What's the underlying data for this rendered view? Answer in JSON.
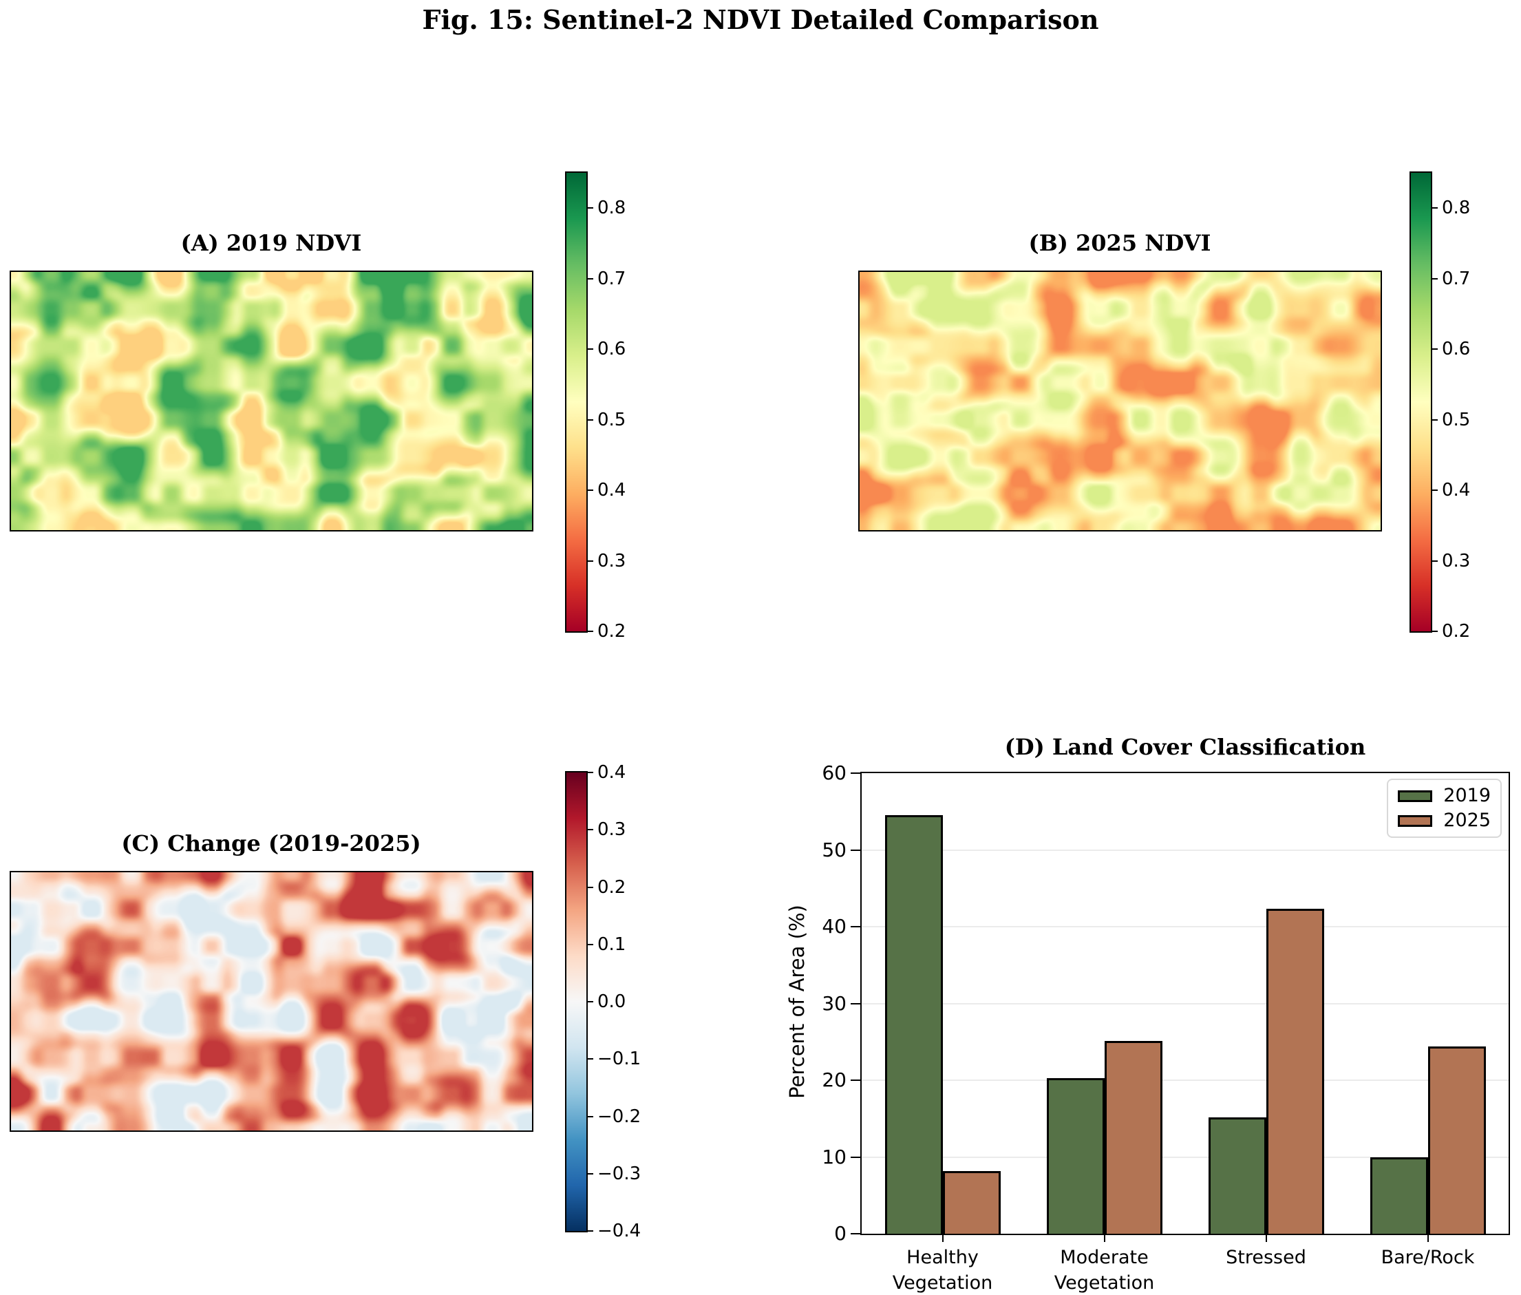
{
  "figure": {
    "title": "Fig. 15: Sentinel-2 NDVI Detailed Comparison"
  },
  "colors": {
    "background": "#ffffff",
    "text": "#000000",
    "map_border": "#000000",
    "bar_edge": "#000000",
    "gridline": "#ebebeb",
    "legend_border": "#d8d8d8",
    "bar_2019": "#567247",
    "bar_2025": "#B27454"
  },
  "colormaps": {
    "RdYlGn": [
      "#a50026",
      "#d73027",
      "#f46d43",
      "#fdae61",
      "#fee08b",
      "#ffffbf",
      "#d9ef8b",
      "#a6d96a",
      "#66bd63",
      "#1a9850",
      "#006837"
    ],
    "RdBu_r": [
      "#053061",
      "#2166ac",
      "#4393c3",
      "#92c5de",
      "#d1e5f0",
      "#f7f7f7",
      "#fddbc7",
      "#f4a582",
      "#d6604d",
      "#b2182b",
      "#67001f"
    ]
  },
  "panels": {
    "a": {
      "title": "(A) 2019 NDVI"
    },
    "b": {
      "title": "(B) 2025 NDVI"
    },
    "c": {
      "title": "(C) Change (2019-2025)"
    },
    "d": {
      "title": "(D) Land Cover Classification"
    }
  },
  "chart_data": [
    {
      "type": "heatmap",
      "panel": "A",
      "title": "(A) 2019 NDVI",
      "colormap": "RdYlGn",
      "vmin": 0.2,
      "vmax": 0.85,
      "colorbar_ticks": [
        0.8,
        0.7,
        0.6,
        0.5,
        0.4,
        0.3,
        0.2
      ],
      "value_range_approx": [
        0.44,
        0.78
      ],
      "field": {
        "seed": 7,
        "base": 0.6,
        "amplitude": 0.16
      }
    },
    {
      "type": "heatmap",
      "panel": "B",
      "title": "(B) 2025 NDVI",
      "colormap": "RdYlGn",
      "vmin": 0.2,
      "vmax": 0.85,
      "colorbar_ticks": [
        0.8,
        0.7,
        0.6,
        0.5,
        0.4,
        0.3,
        0.2
      ],
      "value_range_approx": [
        0.36,
        0.6
      ],
      "field": {
        "seed": 41,
        "base": 0.475,
        "amplitude": 0.115
      }
    },
    {
      "type": "heatmap",
      "panel": "C",
      "title": "(C) Change (2019-2025)",
      "colormap": "RdBu_r",
      "vmin": -0.4,
      "vmax": 0.4,
      "colorbar_ticks": [
        0.4,
        0.3,
        0.2,
        0.1,
        0.0,
        -0.1,
        -0.2,
        -0.3,
        -0.4
      ],
      "value_range_approx": [
        -0.08,
        0.32
      ],
      "field": {
        "seed": 23,
        "base": 0.115,
        "amplitude": 0.17
      }
    },
    {
      "type": "bar",
      "panel": "D",
      "title": "(D) Land Cover Classification",
      "ylabel": "Percent of Area (%)",
      "ylim": [
        0,
        60
      ],
      "yticks": [
        0,
        10,
        20,
        30,
        40,
        50,
        60
      ],
      "categories": [
        "Healthy\nVegetation",
        "Moderate\nVegetation",
        "Stressed",
        "Bare/Rock"
      ],
      "series": [
        {
          "name": "2019",
          "color": "#567247",
          "values": [
            54.5,
            20.3,
            15.2,
            10.0
          ]
        },
        {
          "name": "2025",
          "color": "#B27454",
          "values": [
            8.2,
            25.1,
            42.3,
            24.4
          ]
        }
      ],
      "legend_position": "upper right",
      "grid": "horizontal"
    }
  ]
}
